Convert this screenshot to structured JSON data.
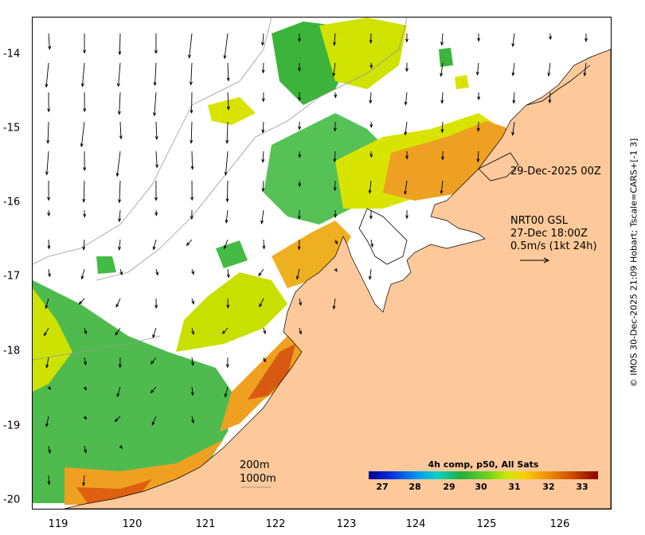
{
  "map": {
    "x_ticks": [
      "119",
      "120",
      "121",
      "122",
      "123",
      "124",
      "125",
      "126"
    ],
    "y_ticks": [
      "-14",
      "-15",
      "-16",
      "-17",
      "-18",
      "-19",
      "-20"
    ],
    "lon_range": [
      118.6,
      126.7
    ],
    "lat_range": [
      -20.1,
      -13.5
    ]
  },
  "annotations": {
    "overlay_time": "29-Dec-2025 00Z",
    "current_source": "NRT00 GSL",
    "current_time": "27-Dec 18:00Z",
    "arrow_scale": "0.5m/s (1kt 24h)",
    "contour_200": "200m",
    "contour_1000": "1000m"
  },
  "colorbar": {
    "title": "4h comp, p50, All Sats",
    "ticks": [
      "27",
      "28",
      "29",
      "30",
      "31",
      "32",
      "33"
    ],
    "colors": {
      "low": "#00008f",
      "mid": "#20b040",
      "high": "#8b0000"
    }
  },
  "credit": "© IMOS 30-Dec-2025 21:09 Hobart; Tscale=CARS+[-1 3]",
  "colors": {
    "land": "#fdc99a",
    "sst_green": "#3cb43c",
    "sst_yellow": "#d8e400",
    "sst_orange": "#f0a020",
    "sst_red": "#e06010"
  }
}
